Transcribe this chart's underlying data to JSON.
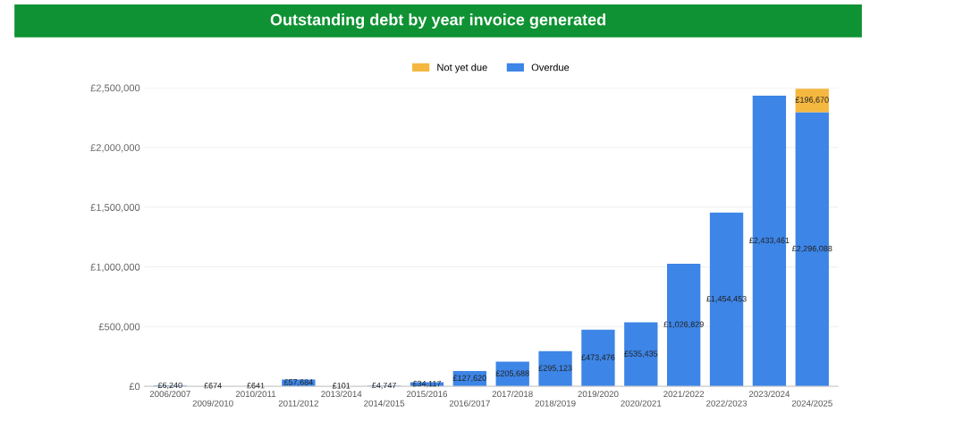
{
  "chart_data": {
    "type": "bar",
    "title": "Outstanding debt by year invoice generated",
    "stacked": true,
    "categories": [
      "2006/2007",
      "2009/2010",
      "2010/2011",
      "2011/2012",
      "2013/2014",
      "2014/2015",
      "2015/2016",
      "2016/2017",
      "2017/2018",
      "2018/2019",
      "2019/2020",
      "2020/2021",
      "2021/2022",
      "2022/2023",
      "2023/2024",
      "2024/2025"
    ],
    "series": [
      {
        "name": "Overdue",
        "color": "#3d85e6",
        "values": [
          6240,
          674,
          641,
          57684,
          101,
          4747,
          34117,
          127620,
          205688,
          295123,
          473476,
          535435,
          1026829,
          1454453,
          2433461,
          2296088
        ],
        "value_labels": [
          "£6,240",
          "£674",
          "£641",
          "£57,684",
          "£101",
          "£4,747",
          "£34,117",
          "£127,620",
          "£205,688",
          "£295,123",
          "£473,476",
          "£535,435",
          "£1,026,829",
          "£1,454,453",
          "£2,433,461",
          "£2,296,088"
        ]
      },
      {
        "name": "Not yet due",
        "color": "#f4b73f",
        "values": [
          null,
          null,
          null,
          null,
          null,
          null,
          null,
          null,
          null,
          null,
          null,
          null,
          null,
          null,
          null,
          196670
        ],
        "value_labels": [
          null,
          null,
          null,
          null,
          null,
          null,
          null,
          null,
          null,
          null,
          null,
          null,
          null,
          null,
          null,
          "£196,670"
        ]
      }
    ],
    "ylim": [
      0,
      2500000
    ],
    "yticks": [
      {
        "value": 0,
        "label": "£0"
      },
      {
        "value": 500000,
        "label": "£500,000"
      },
      {
        "value": 1000000,
        "label": "£1,000,000"
      },
      {
        "value": 1500000,
        "label": "£1,500,000"
      },
      {
        "value": 2000000,
        "label": "£2,000,000"
      },
      {
        "value": 2500000,
        "label": "£2,500,000"
      }
    ],
    "grid": "y",
    "legend": "top"
  }
}
